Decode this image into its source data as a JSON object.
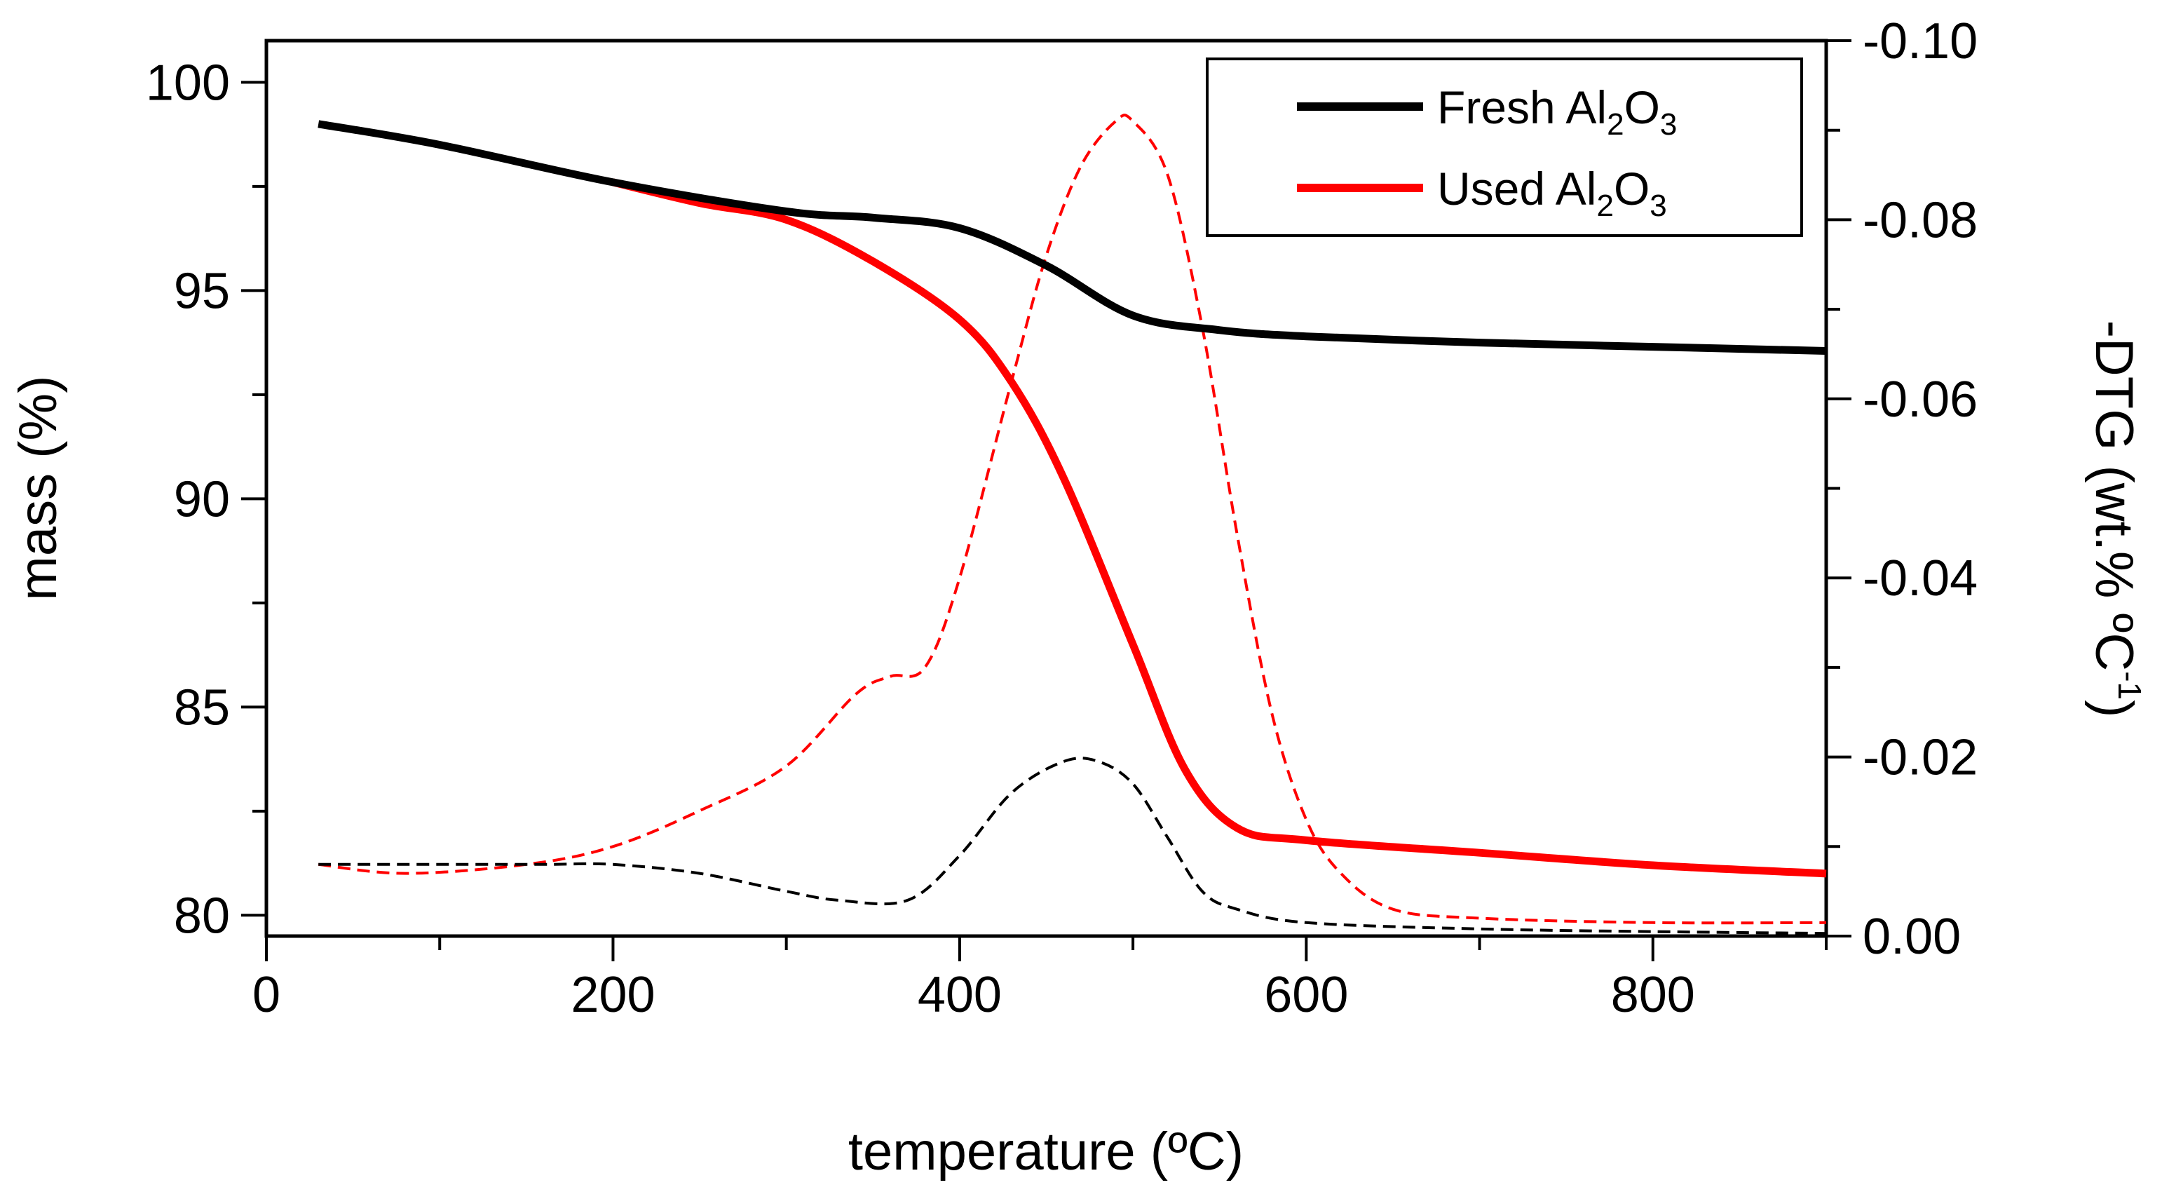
{
  "chart_data": {
    "type": "line",
    "xlabel": "temperature (ºC)",
    "ylabel": "mass (%)",
    "y2label": "-DTG (wt.% ºC",
    "y2label_sup": "-1",
    "y2label_close": ")",
    "xlim": [
      0,
      900
    ],
    "ylim": [
      79.5,
      101
    ],
    "y2lim": [
      0.0,
      -0.1
    ],
    "x_ticks": [
      0,
      200,
      400,
      600,
      800
    ],
    "x_tick_labels": [
      "0",
      "200",
      "400",
      "600",
      "800"
    ],
    "y_ticks": [
      80,
      85,
      90,
      95,
      100
    ],
    "y_tick_labels": [
      "80",
      "85",
      "90",
      "95",
      "100"
    ],
    "y2_ticks": [
      0.0,
      -0.02,
      -0.04,
      -0.06,
      -0.08,
      -0.1
    ],
    "y2_tick_labels": [
      "0.00",
      "-0.02",
      "-0.04",
      "-0.06",
      "-0.08",
      "-0.10"
    ],
    "legend": {
      "position": "top-right",
      "entries": [
        {
          "label_main": "Fresh Al",
          "sub1": "2",
          "mid": "O",
          "sub2": "3",
          "color": "#000000"
        },
        {
          "label_main": "Used Al",
          "sub1": "2",
          "mid": "O",
          "sub2": "3",
          "color": "#ff0000"
        }
      ]
    },
    "series": [
      {
        "name": "Fresh Al2O3 mass",
        "axis": "left",
        "style": "solid",
        "color": "#000000",
        "x": [
          30,
          100,
          200,
          300,
          350,
          400,
          450,
          500,
          550,
          600,
          700,
          800,
          900
        ],
        "y": [
          99.0,
          98.5,
          97.6,
          96.9,
          96.75,
          96.5,
          95.6,
          94.4,
          94.05,
          93.9,
          93.75,
          93.65,
          93.55
        ]
      },
      {
        "name": "Used Al2O3 mass",
        "axis": "left",
        "style": "solid",
        "color": "#ff0000",
        "x": [
          200,
          250,
          300,
          350,
          400,
          430,
          460,
          500,
          530,
          560,
          600,
          700,
          800,
          900
        ],
        "y": [
          97.6,
          97.1,
          96.7,
          95.7,
          94.3,
          92.8,
          90.5,
          86.5,
          83.5,
          82.1,
          81.8,
          81.5,
          81.2,
          81.0
        ]
      },
      {
        "name": "Fresh Al2O3 -DTG",
        "axis": "right",
        "style": "dashed",
        "color": "#000000",
        "x": [
          30,
          100,
          160,
          200,
          250,
          300,
          330,
          370,
          400,
          430,
          460,
          480,
          500,
          520,
          540,
          560,
          600,
          700,
          800,
          900
        ],
        "y": [
          -0.008,
          -0.008,
          -0.008,
          -0.008,
          -0.007,
          -0.005,
          -0.004,
          -0.004,
          -0.009,
          -0.016,
          -0.0195,
          -0.0195,
          -0.017,
          -0.011,
          -0.005,
          -0.003,
          -0.0015,
          -0.0008,
          -0.0005,
          -0.0003
        ]
      },
      {
        "name": "Used Al2O3 -DTG",
        "axis": "right",
        "style": "dashed",
        "color": "#ff0000",
        "x": [
          30,
          80,
          150,
          200,
          250,
          300,
          340,
          360,
          380,
          400,
          430,
          450,
          470,
          490,
          500,
          520,
          540,
          560,
          580,
          600,
          620,
          650,
          700,
          800,
          900
        ],
        "y": [
          -0.008,
          -0.007,
          -0.008,
          -0.01,
          -0.014,
          -0.019,
          -0.027,
          -0.029,
          -0.03,
          -0.04,
          -0.062,
          -0.076,
          -0.086,
          -0.091,
          -0.091,
          -0.085,
          -0.068,
          -0.045,
          -0.025,
          -0.013,
          -0.007,
          -0.003,
          -0.002,
          -0.0015,
          -0.0015
        ]
      }
    ]
  }
}
